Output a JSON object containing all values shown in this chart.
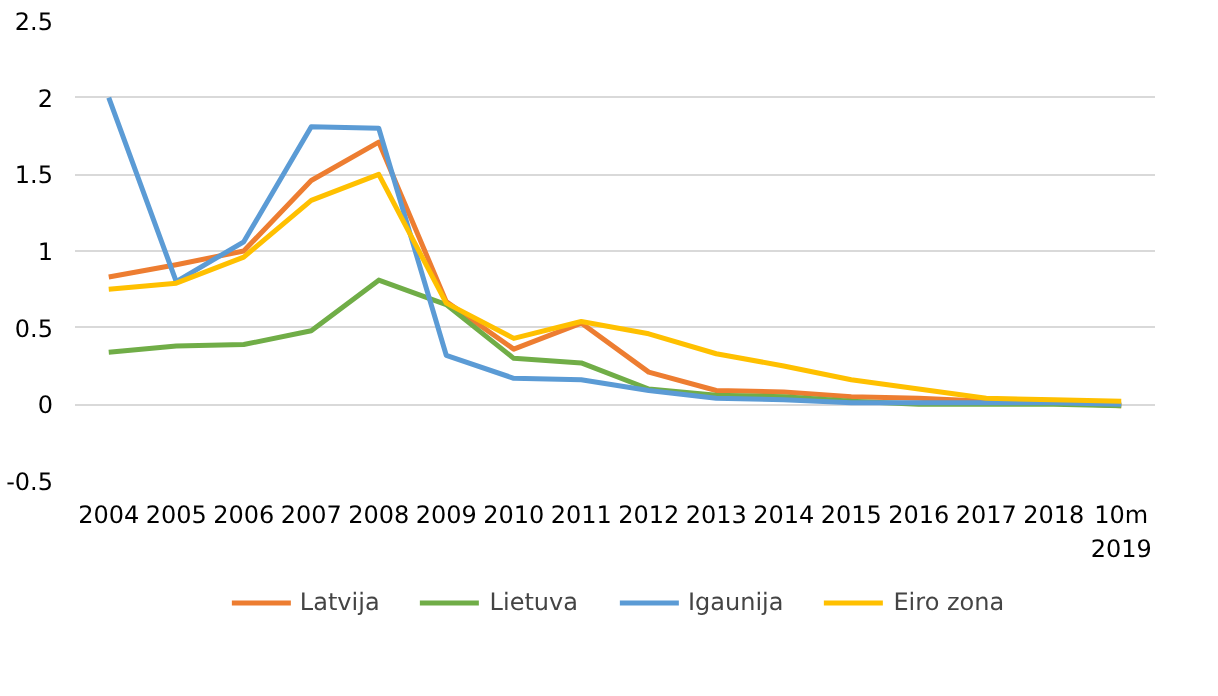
{
  "chart_data": {
    "type": "line",
    "categories": [
      "2004",
      "2005",
      "2006",
      "2007",
      "2008",
      "2009",
      "2010",
      "2011",
      "2012",
      "2013",
      "2014",
      "2015",
      "2016",
      "2017",
      "2018",
      "10m 2019"
    ],
    "series": [
      {
        "name": "Latvija",
        "color": "#ed7d31",
        "values": [
          0.83,
          0.91,
          1.0,
          1.46,
          1.71,
          0.67,
          0.36,
          0.53,
          0.21,
          0.09,
          0.08,
          0.05,
          0.04,
          0.02,
          0.01,
          -0.01
        ]
      },
      {
        "name": "Lietuva",
        "color": "#70ad47",
        "values": [
          0.34,
          0.38,
          0.39,
          0.48,
          0.81,
          0.65,
          0.3,
          0.27,
          0.1,
          0.06,
          0.05,
          0.02,
          0.0,
          0.0,
          0.0,
          -0.01
        ]
      },
      {
        "name": "Igaunija",
        "color": "#5b9bd5",
        "values": [
          2.0,
          0.8,
          1.06,
          1.81,
          1.8,
          0.32,
          0.17,
          0.16,
          0.09,
          0.04,
          0.03,
          0.01,
          0.01,
          0.01,
          0.01,
          0.0
        ]
      },
      {
        "name": "Eiro zona",
        "color": "#ffc000",
        "values": [
          0.75,
          0.79,
          0.96,
          1.33,
          1.5,
          0.66,
          0.43,
          0.54,
          0.46,
          0.33,
          0.25,
          0.16,
          0.1,
          0.04,
          0.03,
          0.02
        ]
      }
    ],
    "ylim": [
      -0.5,
      2.5
    ],
    "yticks": [
      -0.5,
      0,
      0.5,
      1,
      1.5,
      2,
      2.5
    ],
    "grid": "y",
    "legend": "bottom",
    "marker": "none",
    "line_style": "solid"
  }
}
